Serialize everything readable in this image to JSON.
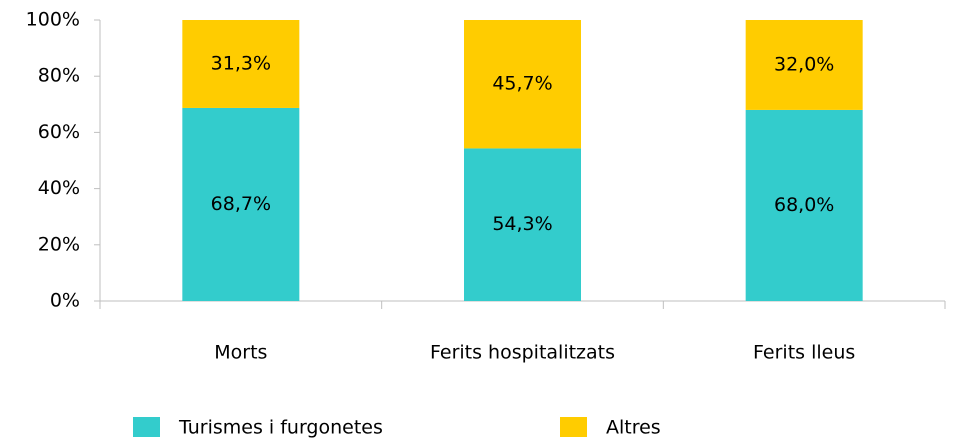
{
  "chart_data": {
    "type": "stacked_bar",
    "categories": [
      "Morts",
      "Ferits hospitalitzats",
      "Ferits lleus"
    ],
    "series": [
      {
        "name": "Turismes i furgonetes",
        "color": "#33cccc",
        "values": [
          68.7,
          54.3,
          68.0
        ],
        "value_labels": [
          "68,7%",
          "54,3%",
          "68,0%"
        ]
      },
      {
        "name": "Altres",
        "color": "#ffcc00",
        "values": [
          31.3,
          45.7,
          32.0
        ],
        "value_labels": [
          "31,3%",
          "45,7%",
          "32,0%"
        ]
      }
    ],
    "ylim": [
      0,
      100
    ],
    "yticks": [
      {
        "value": 0,
        "label": "0%"
      },
      {
        "value": 20,
        "label": "20%"
      },
      {
        "value": 40,
        "label": "40%"
      },
      {
        "value": 60,
        "label": "60%"
      },
      {
        "value": 80,
        "label": "80%"
      },
      {
        "value": 100,
        "label": "100%"
      }
    ],
    "grid": false,
    "legend": "bottom"
  }
}
